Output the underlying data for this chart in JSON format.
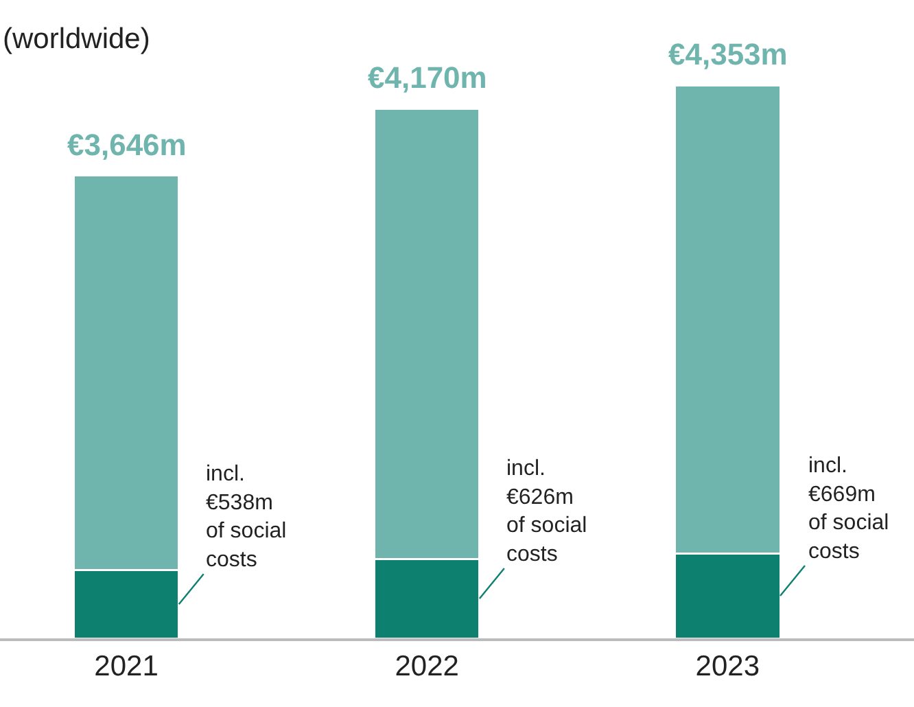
{
  "chart_data": {
    "type": "bar",
    "subtitle": "(worldwide)",
    "stacked": true,
    "categories": [
      "2021",
      "2022",
      "2023"
    ],
    "series": [
      {
        "color": "#0e8070",
        "values": [
          538,
          626,
          669
        ],
        "value_labels": [
          "incl.\n€538m\nof social\ncosts",
          "incl.\n€626m\nof social\ncosts",
          "incl.\n€669m\nof social\ncosts"
        ]
      },
      {
        "color": "#6fb5ad",
        "values": [
          3108,
          3544,
          3684
        ]
      }
    ],
    "totals": [
      "€3,646m",
      "€4,170m",
      "€4,353m"
    ]
  }
}
